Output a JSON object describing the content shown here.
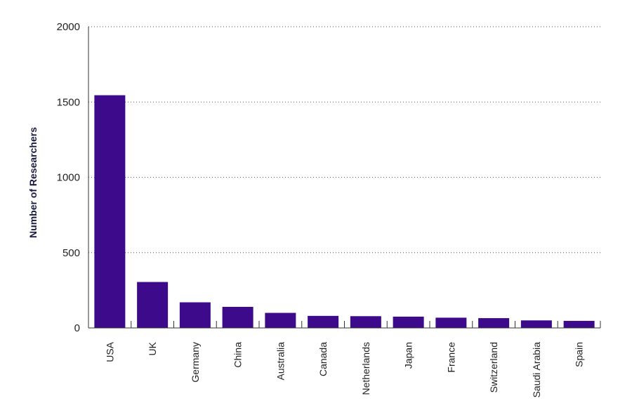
{
  "chart_data": {
    "type": "bar",
    "title": "",
    "xlabel": "",
    "ylabel": "Number of Researchers",
    "categories": [
      "USA",
      "UK",
      "Germany",
      "China",
      "Australia",
      "Canada",
      "Netherlands",
      "Japan",
      "France",
      "Switzerland",
      "Saudi Arabia",
      "Spain"
    ],
    "values": [
      1545,
      305,
      170,
      140,
      100,
      80,
      78,
      75,
      68,
      65,
      50,
      47
    ],
    "ylim": [
      0,
      2000
    ],
    "yticks": [
      "0",
      "500",
      "1000",
      "1500",
      "2000"
    ],
    "grid": true,
    "bar_color": "#3d0a8c",
    "legend": "none"
  }
}
